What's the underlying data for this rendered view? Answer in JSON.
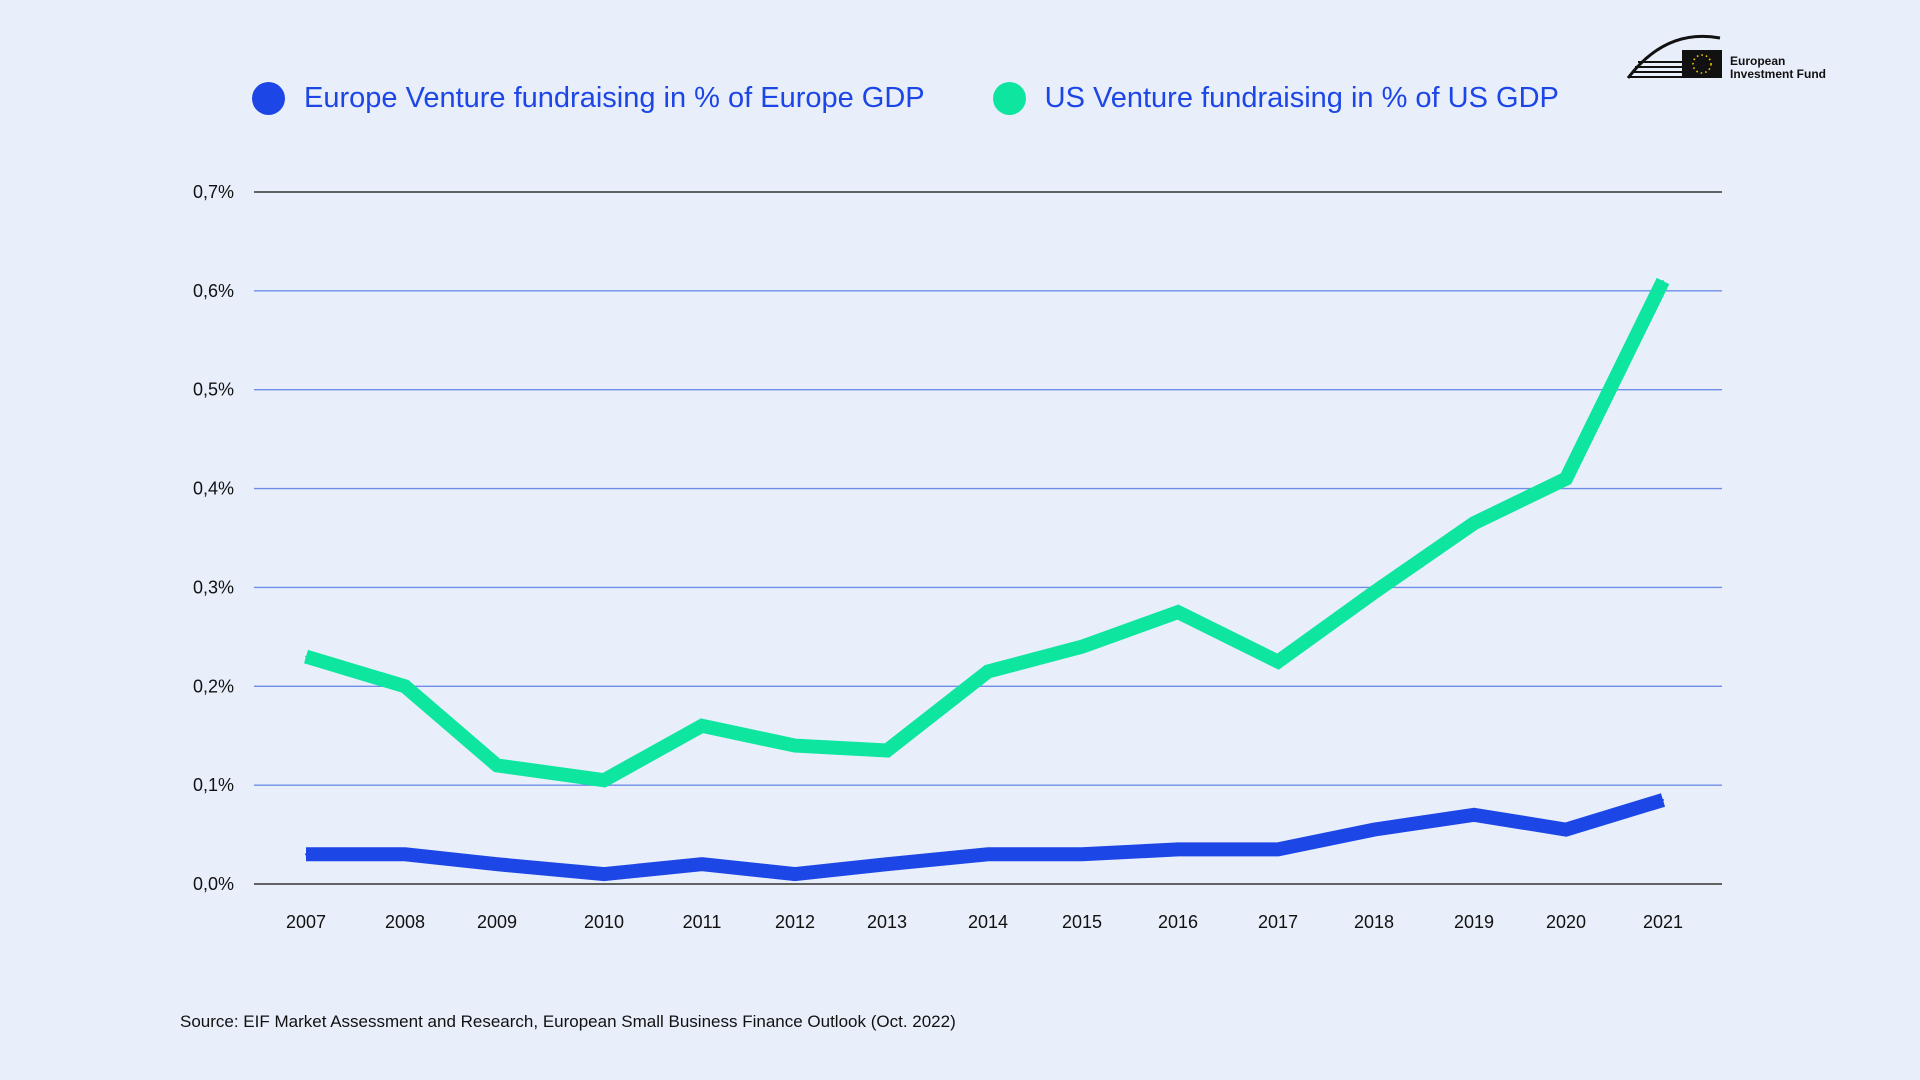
{
  "legend": [
    {
      "label": "Europe Venture fundraising in % of Europe GDP",
      "color": "#1d46e6"
    },
    {
      "label": "US Venture fundraising in % of US GDP",
      "color": "#0ee6a0"
    }
  ],
  "logo": {
    "line1": "European",
    "line2": "Investment Fund"
  },
  "source": "Source: EIF Market Assessment and Research, European Small Business Finance Outlook (Oct. 2022)",
  "chart_data": {
    "type": "line",
    "categories": [
      "2007",
      "2008",
      "2009",
      "2010",
      "2011",
      "2012",
      "2013",
      "2014",
      "2015",
      "2016",
      "2017",
      "2018",
      "2019",
      "2020",
      "2021"
    ],
    "y_tick_labels": [
      "0,0%",
      "0,1%",
      "0,2%",
      "0,3%",
      "0,4%",
      "0,5%",
      "0,6%",
      "0,7%"
    ],
    "ylim": [
      0,
      0.7
    ],
    "grid": true,
    "legend_position": "top",
    "series": [
      {
        "name": "Europe Venture fundraising in % of Europe GDP",
        "color": "#1d46e6",
        "values": [
          0.03,
          0.03,
          0.02,
          0.01,
          0.02,
          0.01,
          0.02,
          0.03,
          0.03,
          0.035,
          0.035,
          0.055,
          0.07,
          0.055,
          0.085
        ]
      },
      {
        "name": "US Venture fundraising in % of US GDP",
        "color": "#0ee6a0",
        "values": [
          0.23,
          0.2,
          0.12,
          0.105,
          0.16,
          0.14,
          0.135,
          0.215,
          0.24,
          0.275,
          0.225,
          0.295,
          0.365,
          0.41,
          0.61
        ]
      }
    ]
  }
}
